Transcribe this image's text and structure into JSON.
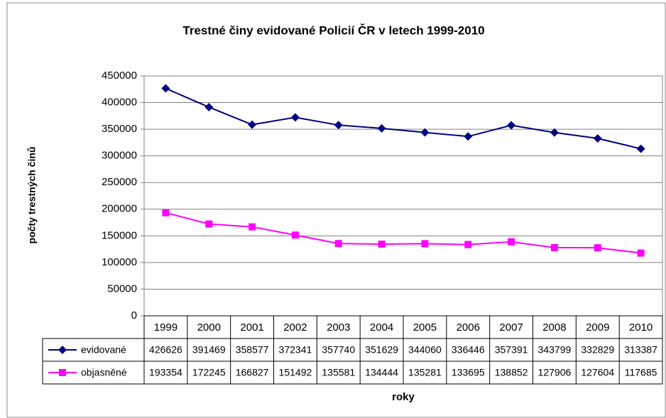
{
  "chart_data": {
    "type": "line",
    "title": "Trestné činy evidované Policií ČR v letech 1999-2010",
    "x_label": "roky",
    "y_label": "počty trestných činů",
    "categories": [
      "1999",
      "2000",
      "2001",
      "2002",
      "2003",
      "2004",
      "2005",
      "2006",
      "2007",
      "2008",
      "2009",
      "2010"
    ],
    "series": [
      {
        "name": "evidované",
        "color": "#000080",
        "marker": "diamond",
        "values": [
          426626,
          391469,
          358577,
          372341,
          357740,
          351629,
          344060,
          336446,
          357391,
          343799,
          332829,
          313387
        ]
      },
      {
        "name": "objasněné",
        "color": "#ff00ff",
        "marker": "square",
        "values": [
          193354,
          172245,
          166827,
          151492,
          135581,
          134444,
          135281,
          133695,
          138852,
          127906,
          127604,
          117685
        ]
      }
    ],
    "ylim": [
      0,
      450000
    ],
    "yticks": [
      0,
      50000,
      100000,
      150000,
      200000,
      250000,
      300000,
      350000,
      400000,
      450000
    ],
    "grid": true,
    "data_table": true
  }
}
